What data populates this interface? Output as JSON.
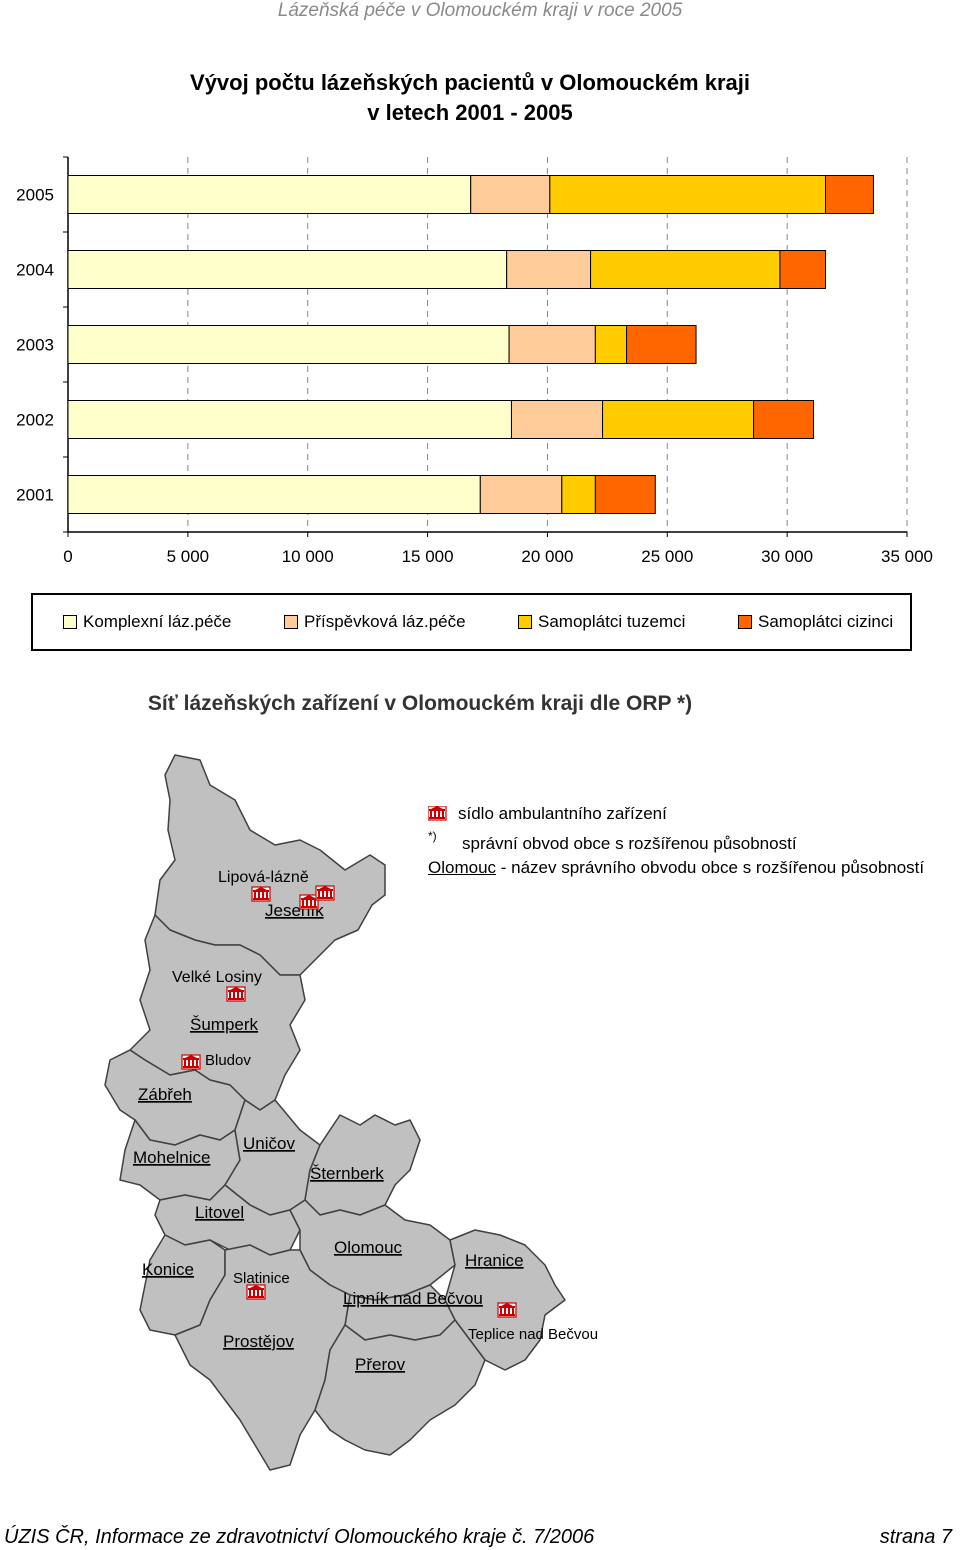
{
  "header": "Lázeňská péče v Olomouckém kraji v roce 2005",
  "chart_data": {
    "type": "bar",
    "orientation": "horizontal",
    "stacked": true,
    "title": "Vývoj počtu lázeňských pacientů v Olomouckém kraji v letech 2001 - 2005",
    "title_line1": "Vývoj počtu lázeňských pacientů v Olomouckém kraji",
    "title_line2": "v letech 2001 - 2005",
    "categories": [
      "2005",
      "2004",
      "2003",
      "2002",
      "2001"
    ],
    "series": [
      {
        "name": "Komplexní láz.péče",
        "color": "#FFFFCC",
        "values": [
          16800,
          18300,
          18400,
          18500,
          17200
        ]
      },
      {
        "name": "Příspěvková láz.péče",
        "color": "#FFCC99",
        "values": [
          3300,
          3500,
          3600,
          3800,
          3400
        ]
      },
      {
        "name": "Samoplátci tuzemci",
        "color": "#FFCC00",
        "values": [
          11500,
          7900,
          1300,
          6300,
          1400
        ]
      },
      {
        "name": "Samoplátci cizinci",
        "color": "#FF6600",
        "values": [
          2000,
          1900,
          2900,
          2500,
          2500
        ]
      }
    ],
    "xlim": [
      0,
      35000
    ],
    "xticks": [
      0,
      5000,
      10000,
      15000,
      20000,
      25000,
      30000,
      35000
    ],
    "xtick_labels": [
      "0",
      "5 000",
      "10 000",
      "15 000",
      "20 000",
      "25 000",
      "30 000",
      "35 000"
    ],
    "grid": "vertical dashed",
    "legend_position": "bottom"
  },
  "map": {
    "title": "Síť lázeňských zařízení v Olomouckém kraji dle ORP *)",
    "legend": {
      "facility": "sídlo ambulantního zařízení",
      "asterisk": "*)",
      "orp": "správní obvod obce s rozšířenou působností",
      "example_name": "Olomouc",
      "example_rest": " - název správního obvodu obce s rozšířenou působností"
    },
    "regions": [
      {
        "name": "Jeseník"
      },
      {
        "name": "Šumperk"
      },
      {
        "name": "Zábřeh"
      },
      {
        "name": "Mohelnice"
      },
      {
        "name": "Uničov"
      },
      {
        "name": "Šternberk"
      },
      {
        "name": "Litovel"
      },
      {
        "name": "Olomouc"
      },
      {
        "name": "Hranice"
      },
      {
        "name": "Konice"
      },
      {
        "name": "Lipník nad Bečvou"
      },
      {
        "name": "Prostějov"
      },
      {
        "name": "Přerov"
      }
    ],
    "spas": [
      {
        "name": "Lipová-lázně"
      },
      {
        "name": "Velké Losiny"
      },
      {
        "name": "Bludov"
      },
      {
        "name": "Slatinice"
      },
      {
        "name": "Teplice nad Bečvou"
      }
    ],
    "colors": {
      "fill": "#C0C0C0",
      "stroke": "#404040",
      "icon": "#CC0000"
    }
  },
  "footer": {
    "left": "ÚZIS ČR, Informace ze zdravotnictví Olomouckého kraje č. 7/2006",
    "right": "strana 7"
  }
}
